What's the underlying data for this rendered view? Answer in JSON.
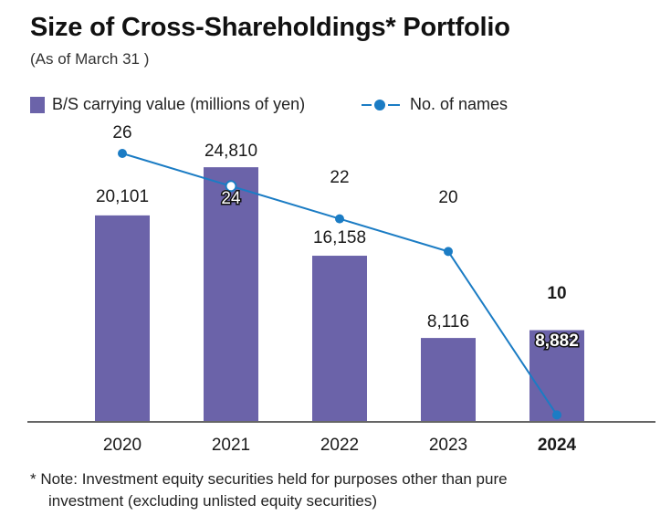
{
  "title": "Size of Cross-Shareholdings* Portfolio",
  "subtitle": "(As of March 31 )",
  "legend": {
    "bar_label": "B/S carrying value (millions of yen)",
    "line_label": "No. of names"
  },
  "note": {
    "line1": "* Note: Investment equity securities held for purposes other than pure",
    "line2": "investment (excluding unlisted equity securities)"
  },
  "colors": {
    "bar": "#6b63a9",
    "line": "#1b7cc4",
    "axis": "#333333"
  },
  "chart_data": {
    "type": "bar",
    "categories": [
      "2020",
      "2021",
      "2022",
      "2023",
      "2024"
    ],
    "highlight_category": "2024",
    "series": [
      {
        "name": "B/S carrying value (millions of yen)",
        "type": "bar",
        "values": [
          20101,
          24810,
          16158,
          8116,
          8882
        ],
        "labels": [
          "20,101",
          "24,810",
          "16,158",
          "8,116",
          "8,882"
        ]
      },
      {
        "name": "No. of names",
        "type": "line",
        "values": [
          26,
          24,
          22,
          20,
          10
        ],
        "labels": [
          "26",
          "24",
          "22",
          "20",
          "10"
        ]
      }
    ],
    "ylim_bar": [
      0,
      25000
    ],
    "ylim_line": [
      0,
      30
    ]
  }
}
